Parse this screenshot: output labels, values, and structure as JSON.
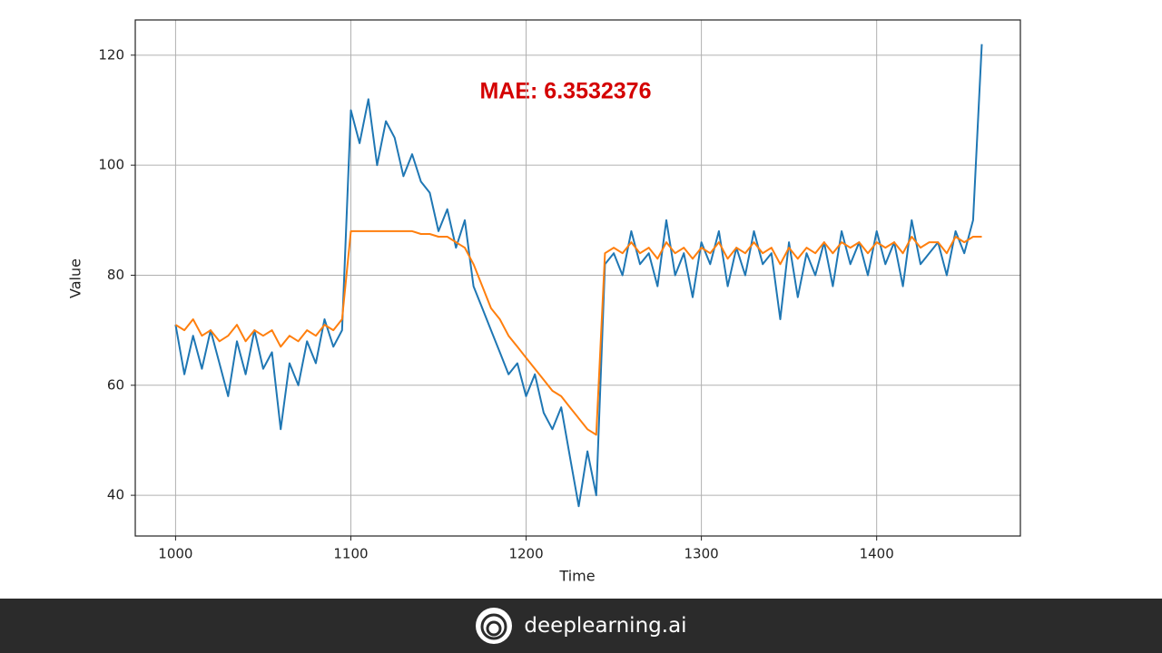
{
  "chart_data": {
    "type": "line",
    "annotation": "MAE: 6.3532376",
    "xlabel": "Time",
    "ylabel": "Value",
    "x": [
      1000,
      1005,
      1010,
      1015,
      1020,
      1025,
      1030,
      1035,
      1040,
      1045,
      1050,
      1055,
      1060,
      1065,
      1070,
      1075,
      1080,
      1085,
      1090,
      1095,
      1100,
      1105,
      1110,
      1115,
      1120,
      1125,
      1130,
      1135,
      1140,
      1145,
      1150,
      1155,
      1160,
      1165,
      1170,
      1175,
      1180,
      1185,
      1190,
      1195,
      1200,
      1205,
      1210,
      1215,
      1220,
      1225,
      1230,
      1235,
      1240,
      1245,
      1250,
      1255,
      1260,
      1265,
      1270,
      1275,
      1280,
      1285,
      1290,
      1295,
      1300,
      1305,
      1310,
      1315,
      1320,
      1325,
      1330,
      1335,
      1340,
      1345,
      1350,
      1355,
      1360,
      1365,
      1370,
      1375,
      1380,
      1385,
      1390,
      1395,
      1400,
      1405,
      1410,
      1415,
      1420,
      1425,
      1430,
      1435,
      1440,
      1445,
      1450,
      1455,
      1460
    ],
    "series": [
      {
        "color": "#1f77b4",
        "values": [
          71,
          62,
          69,
          63,
          70,
          64,
          58,
          68,
          62,
          70,
          63,
          66,
          52,
          64,
          60,
          68,
          64,
          72,
          67,
          70,
          110,
          104,
          112,
          100,
          108,
          105,
          98,
          102,
          97,
          95,
          88,
          92,
          85,
          90,
          78,
          74,
          70,
          66,
          62,
          64,
          58,
          62,
          55,
          52,
          56,
          47,
          38,
          48,
          40,
          82,
          84,
          80,
          88,
          82,
          84,
          78,
          90,
          80,
          84,
          76,
          86,
          82,
          88,
          78,
          85,
          80,
          88,
          82,
          84,
          72,
          86,
          76,
          84,
          80,
          86,
          78,
          88,
          82,
          86,
          80,
          88,
          82,
          86,
          78,
          90,
          82,
          84,
          86,
          80,
          88,
          84,
          90,
          122
        ]
      },
      {
        "color": "#ff7f0e",
        "values": [
          71,
          70,
          72,
          69,
          70,
          68,
          69,
          71,
          68,
          70,
          69,
          70,
          67,
          69,
          68,
          70,
          69,
          71,
          70,
          72,
          88,
          88,
          88,
          88,
          88,
          88,
          88,
          88,
          87.5,
          87.5,
          87,
          87,
          86,
          85,
          82,
          78,
          74,
          72,
          69,
          67,
          65,
          63,
          61,
          59,
          58,
          56,
          54,
          52,
          51,
          84,
          85,
          84,
          86,
          84,
          85,
          83,
          86,
          84,
          85,
          83,
          85,
          84,
          86,
          83,
          85,
          84,
          86,
          84,
          85,
          82,
          85,
          83,
          85,
          84,
          86,
          84,
          86,
          85,
          86,
          84,
          86,
          85,
          86,
          84,
          87,
          85,
          86,
          86,
          84,
          87,
          86,
          87,
          87
        ]
      }
    ],
    "xlim": [
      977,
      1482
    ],
    "ylim": [
      32.6,
      126.4
    ],
    "xticks": [
      1000,
      1100,
      1200,
      1300,
      1400
    ],
    "yticks": [
      40,
      60,
      80,
      100,
      120
    ],
    "grid": true
  }
}
